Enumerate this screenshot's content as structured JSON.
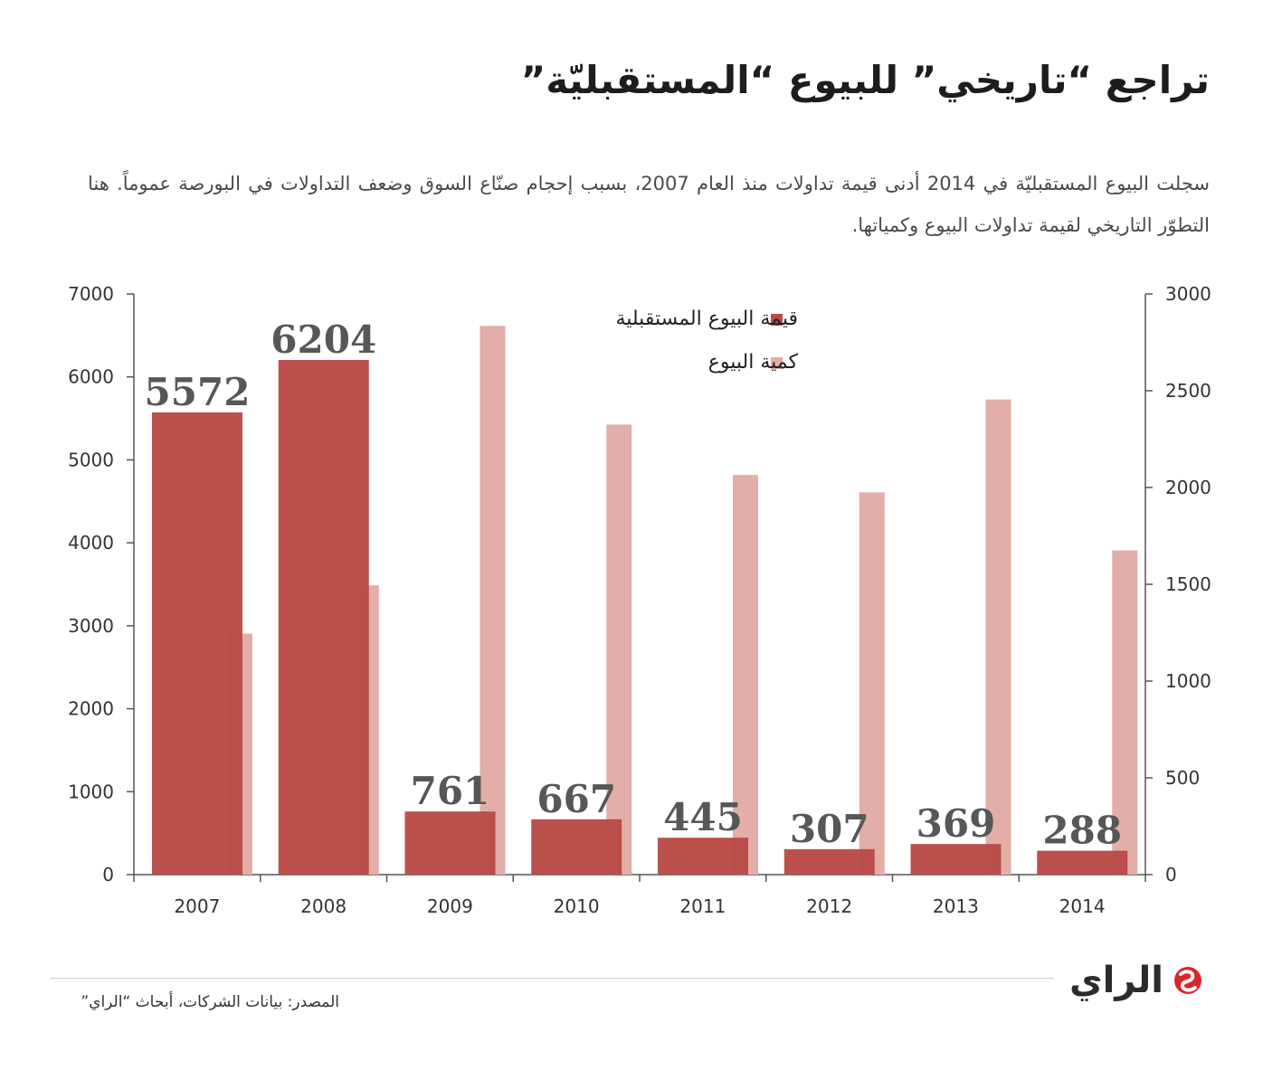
{
  "title": "تراجع “تاريخي” للبيوع “المستقبليّة”",
  "subtitle": "سجلت البيوع المستقبليّة في 2014 أدنى قيمة تداولات منذ العام 2007، بسبب إحجام صنّاع السوق وضعف التداولات في البورصة عموماً. هنا التطوّر التاريخي لقيمة تداولات البيوع وكمياتها.",
  "source": "المصدر: بيانات الشركات، أبحاث “الراي”",
  "logo": {
    "text": "الراي",
    "icon": "alrai-logo-mark"
  },
  "colors": {
    "value_bar": "#b94a47",
    "quantity_bar": "#e2aea7",
    "axis": "#555555",
    "label": "#555555"
  },
  "chart_data": {
    "type": "bar",
    "categories": [
      "2007",
      "2008",
      "2009",
      "2010",
      "2011",
      "2012",
      "2013",
      "2014"
    ],
    "series": [
      {
        "name": "قيمة البيوع المستقبلية",
        "axis": "left",
        "values": [
          5572,
          6204,
          761,
          667,
          445,
          307,
          369,
          288
        ],
        "data_labels": [
          "5572",
          "6204",
          "761",
          "667",
          "445",
          "307",
          "369",
          "288"
        ]
      },
      {
        "name": "كمية البيوع",
        "axis": "right",
        "values": [
          1245,
          1495,
          2835,
          2325,
          2065,
          1975,
          2455,
          1675
        ]
      }
    ],
    "left_axis": {
      "ylim": [
        0,
        7000
      ],
      "ticks": [
        "0",
        "1000",
        "2000",
        "3000",
        "4000",
        "5000",
        "6000",
        "7000"
      ]
    },
    "right_axis": {
      "ylim": [
        0,
        3000
      ],
      "ticks": [
        "0",
        "500",
        "1000",
        "1500",
        "2000",
        "2500",
        "3000"
      ]
    },
    "grid": false,
    "legend_position": "top-right"
  }
}
